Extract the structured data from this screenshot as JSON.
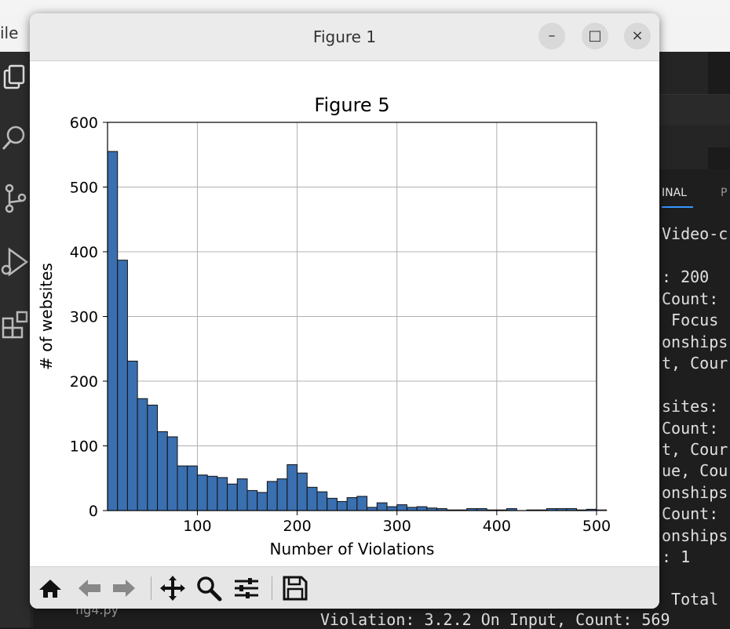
{
  "background": {
    "menu_file": "ile",
    "panel_tabs": [
      "INAL",
      "P"
    ],
    "terminal_lines": [
      "Video-c",
      "",
      ": 200",
      "Count:",
      " Focus",
      "onships",
      "t, Cour",
      "",
      "sites:",
      "Count:",
      "t, Cour",
      "ue, Cou",
      "onships",
      "Count:",
      "onships",
      ": 1",
      "",
      " Total"
    ],
    "bottom_code": "Violation: 3.2.2 On Input, Count: 569",
    "bottom_file": "fig4.py"
  },
  "window": {
    "title": "Figure 1",
    "buttons": {
      "minimize": "–",
      "maximize": "□",
      "close": "×"
    }
  },
  "toolbar": {
    "icons": [
      "home-icon",
      "back-arrow-icon",
      "forward-arrow-icon",
      "pan-icon",
      "zoom-icon",
      "configure-subplots-icon",
      "save-icon"
    ]
  },
  "chart_data": {
    "type": "bar",
    "title": "Figure 5",
    "xlabel": "Number of Violations",
    "ylabel": "# of websites",
    "xlim": [
      10,
      500
    ],
    "ylim": [
      0,
      600
    ],
    "xticks": [
      100,
      200,
      300,
      400,
      500
    ],
    "yticks": [
      0,
      100,
      200,
      300,
      400,
      500,
      600
    ],
    "grid": true,
    "bin_width": 10,
    "bin_start": 10,
    "bar_color": "#3a6fb0",
    "values": [
      555,
      387,
      231,
      173,
      163,
      122,
      114,
      69,
      69,
      55,
      53,
      51,
      41,
      49,
      31,
      28,
      45,
      49,
      71,
      58,
      36,
      29,
      19,
      14,
      20,
      22,
      5,
      12,
      6,
      9,
      5,
      6,
      4,
      3,
      1,
      1,
      3,
      3,
      1,
      1,
      3,
      0,
      1,
      1,
      3,
      3,
      3,
      1,
      2,
      1
    ]
  },
  "colors": {
    "bar_fill": "#3a6fb0",
    "bar_edge": "#111111",
    "grid": "#b0b0b0",
    "window_bg": "#ffffff",
    "titlebar_bg": "#ebebeb",
    "toolbar_bg": "#e6e6e6"
  }
}
